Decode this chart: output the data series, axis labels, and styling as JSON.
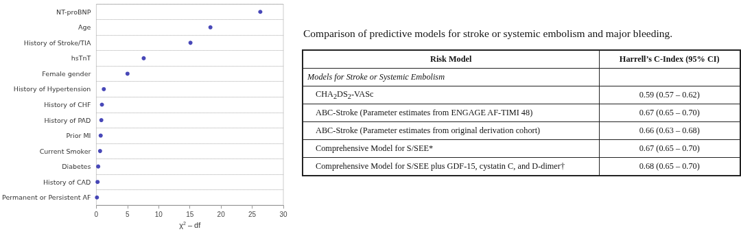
{
  "chart_data": [
    {
      "type": "scatter",
      "orientation": "horizontal",
      "xlabel": "χ$^{2}$ – df",
      "categories": [
        "NT-proBNP",
        "Age",
        "History of Stroke/TIA",
        "hsTnT",
        "Female gender",
        "History of Hypertension",
        "History of CHF",
        "History of PAD",
        "Prior MI",
        "Current Smoker",
        "Diabetes",
        "History of CAD",
        "Permanent or Persistent AF"
      ],
      "series": [
        {
          "color": "#1a1aa6",
          "values": [
            26.3,
            18.3,
            15.1,
            7.6,
            5.0,
            1.2,
            0.9,
            0.8,
            0.7,
            0.6,
            0.3,
            0.2,
            0.1
          ]
        }
      ],
      "xlim": [
        0,
        30
      ],
      "xticks": [
        0,
        5,
        10,
        15,
        20,
        25,
        30
      ],
      "grid": "y",
      "line_style": "dotted",
      "marker": "circle"
    },
    {
      "type": "other",
      "title": "Comparison of predictive models for stroke or systemic embolism and major bleeding.",
      "xlabel": "Risk Model",
      "ylabel": "Harrell’s C-Index (95% CI)",
      "subtitle": "Models for Stroke or Systemic Embolism",
      "categories": [
        "CHA$_{2}$DS$_{2}$-VASc",
        "ABC-Stroke (Parameter estimates from ENGAGE AF-TIMI 48)",
        "ABC-Stroke (Parameter estimates from original derivation cohort)",
        "Comprehensive Model for S/SEE*",
        "Comprehensive Model for S/SEE plus GDF-15, cystatin C, and D-dimer†"
      ],
      "values": [
        0.59,
        0.67,
        0.66,
        0.67,
        0.68
      ],
      "annotations": [
        "(0.57 – 0.62)",
        "(0.65 – 0.70)",
        "(0.63 – 0.68)",
        "(0.65 – 0.70)",
        "(0.65 – 0.70)"
      ],
      "data_labels": true
    }
  ]
}
